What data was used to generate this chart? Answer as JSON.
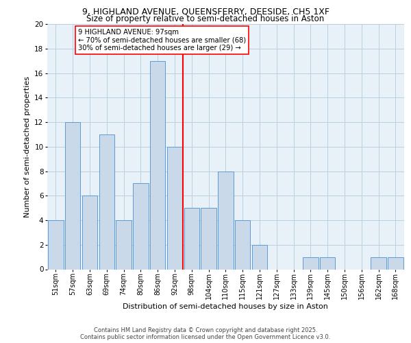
{
  "title_line1": "9, HIGHLAND AVENUE, QUEENSFERRY, DEESIDE, CH5 1XF",
  "title_line2": "Size of property relative to semi-detached houses in Aston",
  "xlabel": "Distribution of semi-detached houses by size in Aston",
  "ylabel": "Number of semi-detached properties",
  "categories": [
    "51sqm",
    "57sqm",
    "63sqm",
    "69sqm",
    "74sqm",
    "80sqm",
    "86sqm",
    "92sqm",
    "98sqm",
    "104sqm",
    "110sqm",
    "115sqm",
    "121sqm",
    "127sqm",
    "133sqm",
    "139sqm",
    "145sqm",
    "150sqm",
    "156sqm",
    "162sqm",
    "168sqm"
  ],
  "values": [
    4,
    12,
    6,
    11,
    4,
    7,
    17,
    10,
    5,
    5,
    8,
    4,
    2,
    0,
    0,
    1,
    1,
    0,
    0,
    1,
    1
  ],
  "bar_color": "#c9d9ea",
  "bar_edge_color": "#5b9bd5",
  "grid_color": "#b8cfe0",
  "bg_color": "#e8f0f8",
  "vline_x": 7.5,
  "vline_color": "red",
  "annotation_title": "9 HIGHLAND AVENUE: 97sqm",
  "annotation_line1": "← 70% of semi-detached houses are smaller (68)",
  "annotation_line2": "30% of semi-detached houses are larger (29) →",
  "ylim": [
    0,
    20
  ],
  "yticks": [
    0,
    2,
    4,
    6,
    8,
    10,
    12,
    14,
    16,
    18,
    20
  ],
  "footer_line1": "Contains HM Land Registry data © Crown copyright and database right 2025.",
  "footer_line2": "Contains public sector information licensed under the Open Government Licence v3.0."
}
